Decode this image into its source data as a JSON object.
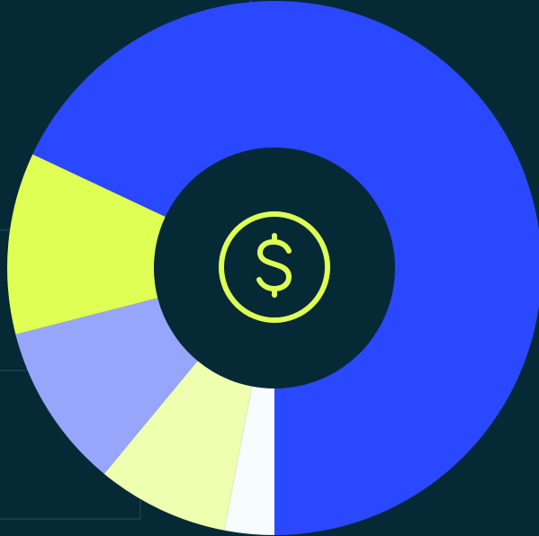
{
  "chart_data": {
    "type": "donut",
    "values": [
      3,
      8,
      10,
      11,
      68
    ],
    "colors": [
      "#f7fcfc",
      "#eeffb0",
      "#97a5fb",
      "#dfff55",
      "#2a48ff"
    ],
    "start_angle": 180,
    "direction": "clockwise"
  }
}
